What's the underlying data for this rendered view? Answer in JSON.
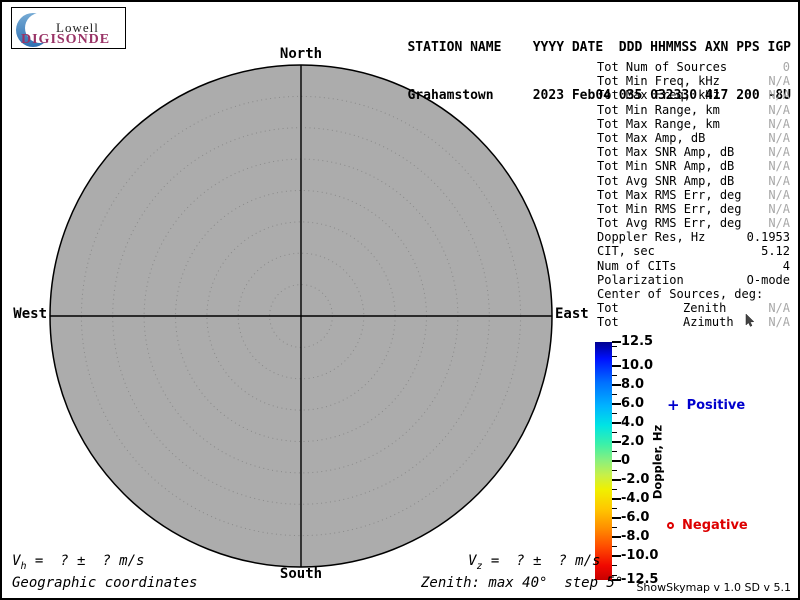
{
  "logo": {
    "line1": "Lowell",
    "line2": "DIGISONDE"
  },
  "header": {
    "line1": "STATION NAME    YYYY DATE  DDD HHMMSS AXN PPS IGP",
    "line2": "Grahamstown     2023 Feb04 035 032330 417 200 -8U"
  },
  "compass": {
    "north": "North",
    "south": "South",
    "east": "East",
    "west": "West"
  },
  "stats": {
    "rows": [
      {
        "label": "Tot Num of Sources",
        "value": "0",
        "dim": true
      },
      {
        "label": "Tot Min Freq, kHz",
        "value": "N/A",
        "dim": true
      },
      {
        "label": "Tot Max Freq, kHz",
        "value": "N/A",
        "dim": true
      },
      {
        "label": "Tot Min Range, km",
        "value": "N/A",
        "dim": true
      },
      {
        "label": "Tot Max Range, km",
        "value": "N/A",
        "dim": true
      },
      {
        "label": "Tot Max Amp, dB",
        "value": "N/A",
        "dim": true
      },
      {
        "label": "Tot Max SNR Amp, dB",
        "value": "N/A",
        "dim": true
      },
      {
        "label": "Tot Min SNR Amp, dB",
        "value": "N/A",
        "dim": true
      },
      {
        "label": "Tot Avg SNR Amp, dB",
        "value": "N/A",
        "dim": true
      },
      {
        "label": "Tot Max RMS Err, deg",
        "value": "N/A",
        "dim": true
      },
      {
        "label": "Tot Min RMS Err, deg",
        "value": "N/A",
        "dim": true
      },
      {
        "label": "Tot Avg RMS Err, deg",
        "value": "N/A",
        "dim": true
      },
      {
        "label": "Doppler Res, Hz",
        "value": "0.1953",
        "dim": false
      },
      {
        "label": "CIT, sec",
        "value": "5.12",
        "dim": false
      },
      {
        "label": "Num of CITs",
        "value": "4",
        "dim": false
      },
      {
        "label": "Polarization",
        "value": "O-mode",
        "dim": false
      },
      {
        "label": "Center of Sources, deg:",
        "value": "",
        "dim": false
      },
      {
        "label": "Tot",
        "mid": "Zenith",
        "value": "N/A",
        "dim": true
      },
      {
        "label": "Tot",
        "mid": "Azimuth",
        "value": "N/A",
        "dim": true
      }
    ]
  },
  "colorbar": {
    "title": "Doppler, Hz",
    "max": 12.5,
    "min": -12.5,
    "major_ticks": [
      {
        "value": 12.5,
        "label": "12.5"
      },
      {
        "value": 10,
        "label": "10.0"
      },
      {
        "value": 8,
        "label": "8.0"
      },
      {
        "value": 6,
        "label": "6.0"
      },
      {
        "value": 4,
        "label": "4.0"
      },
      {
        "value": 2,
        "label": "2.0"
      },
      {
        "value": 0,
        "label": "0"
      },
      {
        "value": -2,
        "label": "-2.0"
      },
      {
        "value": -4,
        "label": "-4.0"
      },
      {
        "value": -6,
        "label": "-6.0"
      },
      {
        "value": -8,
        "label": "-8.0"
      },
      {
        "value": -10,
        "label": "-10.0"
      },
      {
        "value": -12.5,
        "label": "-12.5"
      }
    ],
    "minor_tick_step": 1,
    "gradient": [
      {
        "pct": 0,
        "color": "#000090"
      },
      {
        "pct": 7,
        "color": "#0010ff"
      },
      {
        "pct": 17,
        "color": "#0070ff"
      },
      {
        "pct": 27,
        "color": "#00b4ff"
      },
      {
        "pct": 35,
        "color": "#00e4e4"
      },
      {
        "pct": 43,
        "color": "#3cf0a8"
      },
      {
        "pct": 50,
        "color": "#8cf07c"
      },
      {
        "pct": 56,
        "color": "#c8f048"
      },
      {
        "pct": 62,
        "color": "#f0f000"
      },
      {
        "pct": 70,
        "color": "#ffc800"
      },
      {
        "pct": 78,
        "color": "#ff9000"
      },
      {
        "pct": 86,
        "color": "#ff4c00"
      },
      {
        "pct": 94,
        "color": "#f00800"
      },
      {
        "pct": 100,
        "color": "#c80000"
      }
    ]
  },
  "legend": {
    "positive": {
      "marker": "+",
      "label": "Positive",
      "color": "#0000cd"
    },
    "negative": {
      "marker": "o",
      "label": "Negative",
      "color": "#dd0000"
    }
  },
  "footer": {
    "vh": {
      "v": "V",
      "sub": "h",
      "rest": " =  ? ±  ? m/s"
    },
    "vz": {
      "v": "V",
      "sub": "z",
      "rest": " =  ? ±  ? m/s"
    },
    "coordinates": "Geographic coordinates",
    "zenith_info": "Zenith: max 40°  step 5°",
    "credits": "ShowSkymap v 1.0  SD v 5.1"
  },
  "skymap": {
    "type": "polar-skymap",
    "zenith_max_deg": 40,
    "zenith_step_deg": 5,
    "ring_count": 8,
    "num_sources": 0,
    "fill_color": "#acacac",
    "ring_color": "#8a8a8a",
    "axis_color": "#000000"
  }
}
